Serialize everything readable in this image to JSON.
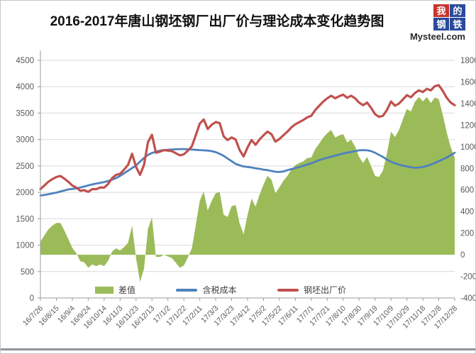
{
  "title": "2016-2017年唐山钢坯钢厂出厂价与理论成本变化趋势图",
  "logo": {
    "chars": [
      "我",
      "的",
      "钢",
      "铁"
    ],
    "site": "Mysteel.com",
    "red": "#c7352c",
    "blue": "#2a4a9b"
  },
  "chart_data": {
    "type": "line",
    "title": "2016-2017年唐山钢坯钢厂出厂价与理论成本变化趋势图",
    "x_tick_labels": [
      "16/7/26",
      "16/8/15",
      "16/9/4",
      "16/9/24",
      "16/10/14",
      "16/11/3",
      "16/11/23",
      "16/12/13",
      "17/1/2",
      "17/1/22",
      "17/2/11",
      "17/3/3",
      "17/3/23",
      "17/4/12",
      "17/5/2",
      "17/5/22",
      "17/6/11",
      "17/7/1",
      "17/7/21",
      "17/8/10",
      "17/8/30",
      "17/9/19",
      "17/10/9",
      "17/10/29",
      "17/11/18",
      "17/12/8",
      "17/12/28"
    ],
    "points_per_tick": 4,
    "left_axis": {
      "min": 0,
      "max": 4500,
      "step": 500,
      "ticks": [
        "0",
        "500",
        "1000",
        "1500",
        "2000",
        "2500",
        "3000",
        "3500",
        "4000",
        "4500"
      ]
    },
    "right_axis": {
      "min": -400,
      "max": 1800,
      "step": 200,
      "ticks": [
        "-400",
        "-200",
        "0",
        "200",
        "400",
        "600",
        "800",
        "1000",
        "1200",
        "1400",
        "1600",
        "1800"
      ]
    },
    "grid": true,
    "legend_position": "bottom",
    "series": [
      {
        "name": "差值",
        "type": "area",
        "axis": "right",
        "color": "#9bbb59",
        "values": [
          120,
          180,
          235,
          270,
          295,
          295,
          225,
          145,
          65,
          15,
          -60,
          -70,
          -120,
          -90,
          -105,
          -90,
          -105,
          -55,
          30,
          60,
          40,
          70,
          110,
          270,
          -30,
          -250,
          -130,
          240,
          345,
          -20,
          -20,
          0,
          -15,
          -30,
          -75,
          -120,
          -100,
          -25,
          60,
          275,
          500,
          585,
          410,
          500,
          570,
          580,
          370,
          350,
          450,
          460,
          290,
          190,
          370,
          520,
          445,
          555,
          650,
          730,
          695,
          570,
          625,
          685,
          730,
          790,
          830,
          850,
          865,
          895,
          900,
          980,
          1030,
          1085,
          1125,
          1155,
          1085,
          1105,
          1115,
          1040,
          1065,
          1000,
          905,
          850,
          905,
          820,
          730,
          720,
          780,
          940,
          1140,
          1090,
          1155,
          1255,
          1350,
          1325,
          1415,
          1460,
          1420,
          1460,
          1405,
          1455,
          1440,
          1295,
          1130,
          995,
          900
        ]
      },
      {
        "name": "含税成本",
        "type": "line",
        "axis": "left",
        "color": "#4f81bd",
        "values": [
          1940,
          1950,
          1965,
          1980,
          1995,
          2015,
          2035,
          2055,
          2065,
          2075,
          2090,
          2110,
          2130,
          2150,
          2165,
          2180,
          2195,
          2215,
          2240,
          2270,
          2310,
          2360,
          2410,
          2460,
          2510,
          2580,
          2650,
          2710,
          2745,
          2770,
          2790,
          2800,
          2805,
          2810,
          2815,
          2820,
          2820,
          2815,
          2810,
          2805,
          2800,
          2795,
          2790,
          2780,
          2760,
          2730,
          2690,
          2640,
          2590,
          2540,
          2510,
          2490,
          2480,
          2470,
          2455,
          2445,
          2430,
          2420,
          2405,
          2390,
          2385,
          2395,
          2420,
          2440,
          2460,
          2480,
          2505,
          2525,
          2550,
          2580,
          2610,
          2635,
          2655,
          2675,
          2695,
          2715,
          2735,
          2750,
          2765,
          2780,
          2795,
          2800,
          2795,
          2780,
          2750,
          2710,
          2670,
          2620,
          2580,
          2550,
          2525,
          2505,
          2490,
          2475,
          2465,
          2470,
          2480,
          2500,
          2525,
          2555,
          2590,
          2625,
          2660,
          2705,
          2750
        ]
      },
      {
        "name": "钢坯出厂价",
        "type": "line",
        "axis": "left",
        "color": "#c0504d",
        "values": [
          2060,
          2130,
          2200,
          2250,
          2290,
          2310,
          2260,
          2200,
          2130,
          2090,
          2030,
          2040,
          2010,
          2060,
          2060,
          2090,
          2090,
          2160,
          2270,
          2330,
          2350,
          2430,
          2520,
          2730,
          2480,
          2330,
          2520,
          2950,
          3090,
          2750,
          2770,
          2800,
          2790,
          2780,
          2740,
          2700,
          2720,
          2790,
          2870,
          3080,
          3300,
          3380,
          3200,
          3280,
          3330,
          3310,
          3060,
          2990,
          3040,
          3000,
          2800,
          2680,
          2850,
          2990,
          2900,
          3000,
          3080,
          3150,
          3100,
          2960,
          3010,
          3080,
          3150,
          3230,
          3290,
          3330,
          3370,
          3420,
          3450,
          3560,
          3640,
          3720,
          3780,
          3830,
          3780,
          3820,
          3850,
          3790,
          3830,
          3780,
          3700,
          3650,
          3700,
          3600,
          3480,
          3430,
          3450,
          3560,
          3720,
          3640,
          3680,
          3760,
          3840,
          3800,
          3880,
          3930,
          3900,
          3960,
          3930,
          4010,
          4030,
          3920,
          3790,
          3700,
          3650
        ]
      }
    ]
  },
  "legend": {
    "diff_label": "差值",
    "cost_label": "含税成本",
    "price_label": "钢坯出厂价"
  }
}
